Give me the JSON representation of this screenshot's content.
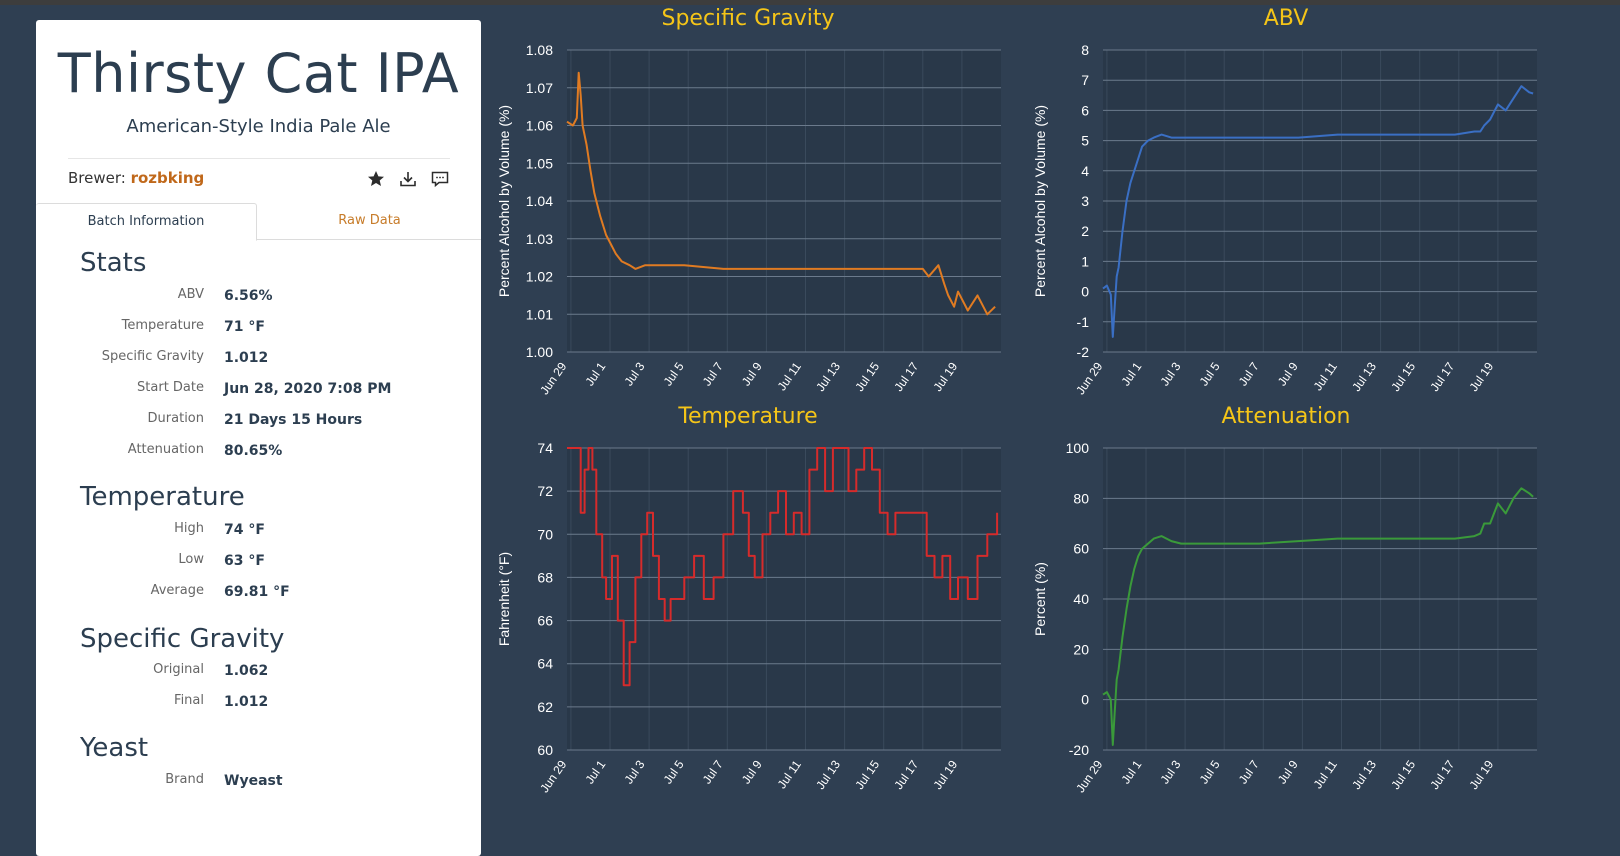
{
  "beer": {
    "title": "Thirsty Cat IPA",
    "style": "American-Style India Pale Ale",
    "brewer_label": "Brewer:",
    "brewer_name": "rozbking"
  },
  "actions": {
    "icons": [
      "star-icon",
      "download-icon",
      "comment-icon"
    ]
  },
  "tabs": [
    {
      "label": "Batch Information",
      "active": true
    },
    {
      "label": "Raw Data",
      "active": false
    }
  ],
  "sections": {
    "stats": {
      "title": "Stats",
      "rows": [
        {
          "label": "ABV",
          "value": "6.56%"
        },
        {
          "label": "Temperature",
          "value": "71 °F"
        },
        {
          "label": "Specific Gravity",
          "value": "1.012"
        },
        {
          "label": "Start Date",
          "value": "Jun 28, 2020 7:08 PM"
        },
        {
          "label": "Duration",
          "value": "21 Days 15 Hours"
        },
        {
          "label": "Attenuation",
          "value": "80.65%"
        }
      ]
    },
    "temperature": {
      "title": "Temperature",
      "rows": [
        {
          "label": "High",
          "value": "74 °F"
        },
        {
          "label": "Low",
          "value": "63 °F"
        },
        {
          "label": "Average",
          "value": "69.81 °F"
        }
      ]
    },
    "gravity": {
      "title": "Specific Gravity",
      "rows": [
        {
          "label": "Original",
          "value": "1.062"
        },
        {
          "label": "Final",
          "value": "1.012"
        }
      ]
    },
    "yeast": {
      "title": "Yeast",
      "rows": [
        {
          "label": "Brand",
          "value": "Wyeast"
        }
      ]
    }
  },
  "colors": {
    "background": "#2f3f52",
    "chart_title": "#f5c518",
    "gravity": "#e07b22",
    "abv": "#3a6fc4",
    "temperature": "#d62b2b",
    "attenuation": "#3a9a3a"
  },
  "chart_data": [
    {
      "type": "line",
      "title": "Specific Gravity",
      "ylabel": "Percent Alcohol by Volume (%)",
      "ylim": [
        1.0,
        1.08
      ],
      "yticks": [
        "1.08",
        "1.07",
        "1.06",
        "1.05",
        "1.04",
        "1.03",
        "1.02",
        "1.01",
        "1.00"
      ],
      "xticks": [
        "Jun 29",
        "Jul 1",
        "Jul 3",
        "Jul 5",
        "Jul 7",
        "Jul 9",
        "Jul 11",
        "Jul 13",
        "Jul 15",
        "Jul 17",
        "Jul 19"
      ],
      "xlim_days": [
        0,
        22.2
      ],
      "grid": true,
      "series": [
        {
          "color": "#e07b22",
          "x": [
            0.0,
            0.3,
            0.5,
            0.6,
            0.7,
            0.8,
            1.0,
            1.2,
            1.4,
            1.7,
            2.0,
            2.2,
            2.5,
            2.8,
            3.2,
            3.5,
            4.0,
            5.0,
            6.0,
            8.0,
            10.0,
            12.0,
            14.0,
            16.0,
            17.0,
            18.2,
            18.5,
            19.0,
            19.3,
            19.5,
            19.8,
            20.0,
            20.5,
            21.0,
            21.5,
            21.9
          ],
          "y": [
            1.061,
            1.06,
            1.062,
            1.074,
            1.068,
            1.06,
            1.055,
            1.048,
            1.042,
            1.036,
            1.031,
            1.029,
            1.026,
            1.024,
            1.023,
            1.022,
            1.023,
            1.023,
            1.023,
            1.022,
            1.022,
            1.022,
            1.022,
            1.022,
            1.022,
            1.022,
            1.02,
            1.023,
            1.018,
            1.015,
            1.012,
            1.016,
            1.011,
            1.015,
            1.01,
            1.012
          ]
        }
      ]
    },
    {
      "type": "line",
      "title": "ABV",
      "ylabel": "Percent Alcohol by Volume (%)",
      "ylim": [
        -2,
        8
      ],
      "yticks": [
        "8",
        "7",
        "6",
        "5",
        "4",
        "3",
        "2",
        "1",
        "0",
        "-1",
        "-2"
      ],
      "xticks": [
        "Jun 29",
        "Jul 1",
        "Jul 3",
        "Jul 5",
        "Jul 7",
        "Jul 9",
        "Jul 11",
        "Jul 13",
        "Jul 15",
        "Jul 17",
        "Jul 19"
      ],
      "xlim_days": [
        0,
        22.2
      ],
      "grid": true,
      "series": [
        {
          "color": "#3a6fc4",
          "x": [
            0.0,
            0.2,
            0.4,
            0.5,
            0.6,
            0.7,
            0.8,
            1.0,
            1.2,
            1.4,
            1.6,
            1.8,
            2.0,
            2.3,
            2.6,
            3.0,
            3.5,
            4.0,
            5.0,
            6.0,
            8.0,
            10.0,
            12.0,
            14.0,
            16.0,
            18.0,
            19.0,
            19.3,
            19.5,
            19.8,
            20.2,
            20.6,
            21.0,
            21.4,
            21.8,
            22.0
          ],
          "y": [
            0.1,
            0.2,
            -0.1,
            -1.5,
            -0.5,
            0.5,
            0.8,
            2.0,
            3.0,
            3.6,
            4.0,
            4.4,
            4.8,
            5.0,
            5.1,
            5.2,
            5.1,
            5.1,
            5.1,
            5.1,
            5.1,
            5.1,
            5.2,
            5.2,
            5.2,
            5.2,
            5.3,
            5.3,
            5.5,
            5.7,
            6.2,
            6.0,
            6.4,
            6.8,
            6.6,
            6.56
          ]
        }
      ]
    },
    {
      "type": "line",
      "title": "Temperature",
      "ylabel": "Fahrenheit (°F)",
      "ylim": [
        60,
        74
      ],
      "yticks": [
        "74",
        "72",
        "70",
        "68",
        "66",
        "64",
        "62",
        "60"
      ],
      "xticks": [
        "Jun 29",
        "Jul 1",
        "Jul 3",
        "Jul 5",
        "Jul 7",
        "Jul 9",
        "Jul 11",
        "Jul 13",
        "Jul 15",
        "Jul 17",
        "Jul 19"
      ],
      "xlim_days": [
        0,
        22.2
      ],
      "grid": true,
      "series": [
        {
          "color": "#d62b2b",
          "x": [
            0.0,
            0.5,
            0.7,
            0.9,
            1.1,
            1.3,
            1.5,
            1.8,
            2.0,
            2.3,
            2.6,
            2.9,
            3.2,
            3.5,
            3.8,
            4.1,
            4.4,
            4.7,
            5.0,
            5.3,
            5.6,
            6.0,
            6.5,
            7.0,
            7.5,
            8.0,
            8.5,
            9.0,
            9.3,
            9.6,
            10.0,
            10.4,
            10.8,
            11.2,
            11.6,
            12.0,
            12.4,
            12.8,
            13.2,
            13.6,
            14.0,
            14.4,
            14.8,
            15.2,
            15.6,
            16.0,
            16.4,
            16.8,
            17.2,
            17.6,
            18.0,
            18.4,
            18.8,
            19.2,
            19.6,
            20.0,
            20.5,
            21.0,
            21.5,
            22.0
          ],
          "y": [
            74,
            74,
            71,
            73,
            74,
            73,
            70,
            68,
            67,
            69,
            66,
            63,
            65,
            68,
            70,
            71,
            69,
            67,
            66,
            67,
            67,
            68,
            69,
            67,
            68,
            70,
            72,
            71,
            69,
            68,
            70,
            71,
            72,
            70,
            71,
            70,
            73,
            74,
            72,
            74,
            74,
            72,
            73,
            74,
            73,
            71,
            70,
            71,
            71,
            71,
            71,
            69,
            68,
            69,
            67,
            68,
            67,
            69,
            70,
            71
          ]
        }
      ]
    },
    {
      "type": "line",
      "title": "Attenuation",
      "ylabel": "Percent (%)",
      "ylim": [
        -20,
        100
      ],
      "yticks": [
        "100",
        "80",
        "60",
        "40",
        "20",
        "0",
        "-20"
      ],
      "xticks": [
        "Jun 29",
        "Jul 1",
        "Jul 3",
        "Jul 5",
        "Jul 7",
        "Jul 9",
        "Jul 11",
        "Jul 13",
        "Jul 15",
        "Jul 17",
        "Jul 19"
      ],
      "xlim_days": [
        0,
        22.2
      ],
      "grid": true,
      "series": [
        {
          "color": "#3a9a3a",
          "x": [
            0.0,
            0.2,
            0.4,
            0.5,
            0.6,
            0.7,
            0.8,
            1.0,
            1.2,
            1.4,
            1.6,
            1.8,
            2.0,
            2.3,
            2.6,
            3.0,
            3.5,
            4.0,
            5.0,
            6.0,
            8.0,
            10.0,
            12.0,
            14.0,
            16.0,
            18.0,
            19.0,
            19.3,
            19.5,
            19.8,
            20.2,
            20.6,
            21.0,
            21.4,
            21.8,
            22.0
          ],
          "y": [
            2,
            3,
            0,
            -18,
            -5,
            8,
            12,
            25,
            36,
            45,
            52,
            57,
            60,
            62,
            64,
            65,
            63,
            62,
            62,
            62,
            62,
            63,
            64,
            64,
            64,
            64,
            65,
            66,
            70,
            70,
            78,
            74,
            80,
            84,
            82,
            80.65
          ]
        }
      ]
    }
  ]
}
